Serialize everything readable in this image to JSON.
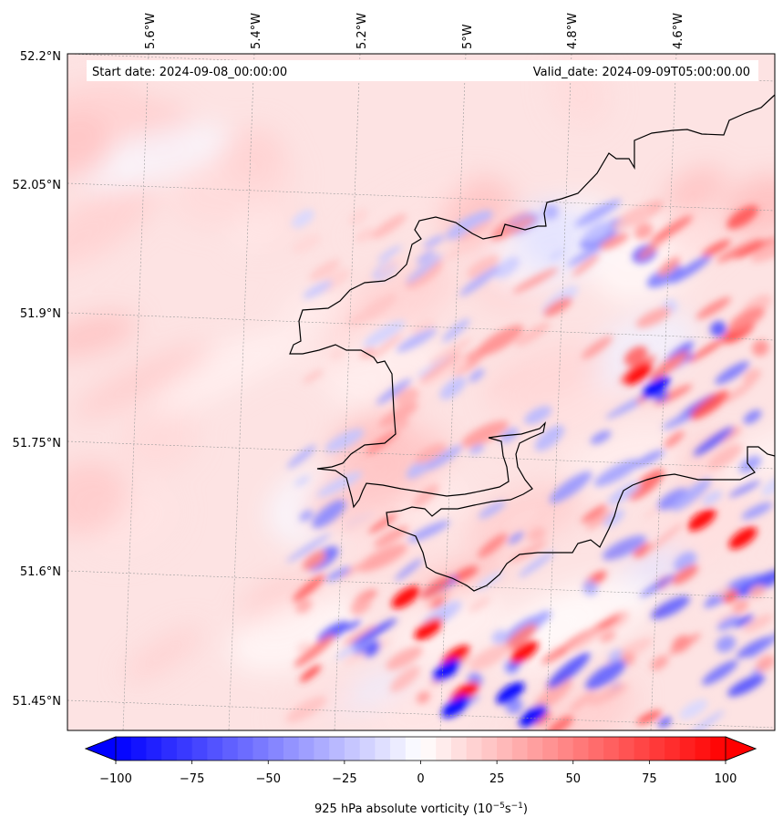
{
  "info": {
    "start_date": "Start date: 2024-09-08_00:00:00",
    "valid_date": "Valid_date: 2024-09-09T05:00:00.00"
  },
  "map": {
    "lon_ticks": [
      "5.6°W",
      "5.4°W",
      "5.2°W",
      "5°W",
      "4.8°W",
      "4.6°W"
    ],
    "lat_ticks": [
      "52.2°N",
      "52.05°N",
      "51.9°N",
      "51.75°N",
      "51.6°N",
      "51.45°N"
    ]
  },
  "colorbar": {
    "min": -100,
    "max": 100,
    "ticks": [
      "−100",
      "−75",
      "−50",
      "−25",
      "0",
      "25",
      "50",
      "75",
      "100"
    ],
    "label_main": "925 hPa absolute vorticity (10",
    "label_exp1": "−5",
    "label_mid": "s",
    "label_exp2": "−1",
    "label_end": ")",
    "color_low": "#0000ff",
    "color_mid": "#ffffff",
    "color_high": "#ff0000"
  }
}
